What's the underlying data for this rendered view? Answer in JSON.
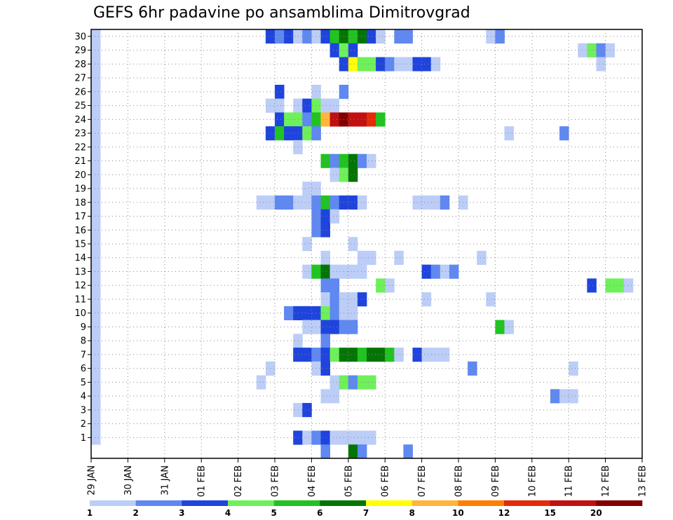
{
  "chart_data": {
    "type": "heatmap",
    "title": "GEFS 6hr padavine po ansamblima Dimitrovgrad",
    "xlabel": "",
    "ylabel": "",
    "x_tick_labels": [
      "29 JAN",
      "30 JAN",
      "31 JAN",
      "01 FEB",
      "02 FEB",
      "03 FEB",
      "04 FEB",
      "05 FEB",
      "06 FEB",
      "07 FEB",
      "08 FEB",
      "09 FEB",
      "10 FEB",
      "11 FEB",
      "12 FEB",
      "13 FEB"
    ],
    "y_tick_labels": [
      "1",
      "2",
      "3",
      "4",
      "5",
      "6",
      "7",
      "8",
      "9",
      "10",
      "11",
      "12",
      "13",
      "14",
      "15",
      "16",
      "17",
      "18",
      "19",
      "20",
      "21",
      "22",
      "23",
      "24",
      "25",
      "26",
      "27",
      "28",
      "29",
      "30"
    ],
    "y_range": [
      0,
      30
    ],
    "grid": true,
    "legend_placement": "bottom",
    "color_scale": {
      "boundaries": [
        "1",
        "2",
        "3",
        "4",
        "5",
        "6",
        "7",
        "8",
        "10",
        "12",
        "15",
        "20"
      ],
      "colors": [
        "#bccdf7",
        "#5f88f0",
        "#1f44dd",
        "#6ef05b",
        "#21c321",
        "#047504",
        "#ffff00",
        "#ffb53a",
        "#ff7f00",
        "#e52a0a",
        "#c01010",
        "#820000"
      ]
    },
    "cells": [
      [
        0,
        1,
        1
      ],
      [
        0,
        2,
        1
      ],
      [
        0,
        3,
        1
      ],
      [
        0,
        4,
        1
      ],
      [
        0,
        5,
        1
      ],
      [
        0,
        6,
        1
      ],
      [
        0,
        7,
        1
      ],
      [
        0,
        8,
        1
      ],
      [
        0,
        9,
        1
      ],
      [
        0,
        10,
        1
      ],
      [
        0,
        11,
        1
      ],
      [
        0,
        12,
        1
      ],
      [
        0,
        13,
        1
      ],
      [
        0,
        14,
        1
      ],
      [
        0,
        15,
        1
      ],
      [
        0,
        16,
        1
      ],
      [
        0,
        17,
        1
      ],
      [
        0,
        18,
        1
      ],
      [
        0,
        19,
        1
      ],
      [
        0,
        20,
        1
      ],
      [
        0,
        21,
        1
      ],
      [
        0,
        22,
        1
      ],
      [
        0,
        23,
        1
      ],
      [
        0,
        24,
        1
      ],
      [
        0,
        25,
        1
      ],
      [
        0,
        26,
        1
      ],
      [
        0,
        27,
        1
      ],
      [
        0,
        28,
        1
      ],
      [
        0,
        29,
        1
      ],
      [
        0,
        30,
        1
      ],
      [
        19,
        30,
        3
      ],
      [
        20,
        30,
        2
      ],
      [
        21,
        30,
        3
      ],
      [
        22,
        30,
        1
      ],
      [
        23,
        30,
        2
      ],
      [
        24,
        30,
        1
      ],
      [
        25,
        30,
        3
      ],
      [
        26,
        30,
        5
      ],
      [
        27,
        30,
        6
      ],
      [
        28,
        30,
        5
      ],
      [
        29,
        30,
        6
      ],
      [
        30,
        30,
        3
      ],
      [
        31,
        30,
        1
      ],
      [
        33,
        30,
        2
      ],
      [
        34,
        30,
        2
      ],
      [
        43,
        30,
        1
      ],
      [
        44,
        30,
        2
      ],
      [
        26,
        29,
        3
      ],
      [
        27,
        29,
        4
      ],
      [
        28,
        29,
        3
      ],
      [
        53,
        29,
        1
      ],
      [
        54,
        29,
        4
      ],
      [
        55,
        29,
        2
      ],
      [
        56,
        29,
        1
      ],
      [
        27,
        28,
        3
      ],
      [
        28,
        28,
        7
      ],
      [
        29,
        28,
        4
      ],
      [
        30,
        28,
        4
      ],
      [
        31,
        28,
        3
      ],
      [
        32,
        28,
        2
      ],
      [
        33,
        28,
        1
      ],
      [
        34,
        28,
        1
      ],
      [
        35,
        28,
        3
      ],
      [
        36,
        28,
        3
      ],
      [
        37,
        28,
        1
      ],
      [
        55,
        28,
        1
      ],
      [
        20,
        26,
        3
      ],
      [
        24,
        26,
        1
      ],
      [
        27,
        26,
        2
      ],
      [
        19,
        25,
        1
      ],
      [
        20,
        25,
        1
      ],
      [
        22,
        25,
        1
      ],
      [
        23,
        25,
        3
      ],
      [
        24,
        25,
        4
      ],
      [
        25,
        25,
        1
      ],
      [
        26,
        25,
        1
      ],
      [
        20,
        24,
        3
      ],
      [
        21,
        24,
        4
      ],
      [
        22,
        24,
        4
      ],
      [
        23,
        24,
        2
      ],
      [
        24,
        24,
        5
      ],
      [
        25,
        24,
        8
      ],
      [
        26,
        24,
        11
      ],
      [
        27,
        24,
        12
      ],
      [
        28,
        24,
        11
      ],
      [
        29,
        24,
        11
      ],
      [
        30,
        24,
        10
      ],
      [
        31,
        24,
        5
      ],
      [
        19,
        23,
        3
      ],
      [
        20,
        23,
        5
      ],
      [
        21,
        23,
        3
      ],
      [
        22,
        23,
        3
      ],
      [
        23,
        23,
        4
      ],
      [
        24,
        23,
        2
      ],
      [
        45,
        23,
        1
      ],
      [
        51,
        23,
        2
      ],
      [
        22,
        22,
        1
      ],
      [
        25,
        21,
        5
      ],
      [
        26,
        21,
        2
      ],
      [
        27,
        21,
        5
      ],
      [
        28,
        21,
        6
      ],
      [
        29,
        21,
        2
      ],
      [
        30,
        21,
        1
      ],
      [
        26,
        20,
        1
      ],
      [
        27,
        20,
        4
      ],
      [
        28,
        20,
        6
      ],
      [
        23,
        19,
        1
      ],
      [
        24,
        19,
        1
      ],
      [
        18,
        18,
        1
      ],
      [
        19,
        18,
        1
      ],
      [
        20,
        18,
        2
      ],
      [
        21,
        18,
        2
      ],
      [
        22,
        18,
        1
      ],
      [
        23,
        18,
        1
      ],
      [
        24,
        18,
        2
      ],
      [
        25,
        18,
        5
      ],
      [
        26,
        18,
        2
      ],
      [
        27,
        18,
        3
      ],
      [
        28,
        18,
        3
      ],
      [
        29,
        18,
        1
      ],
      [
        35,
        18,
        1
      ],
      [
        36,
        18,
        1
      ],
      [
        37,
        18,
        1
      ],
      [
        38,
        18,
        2
      ],
      [
        40,
        18,
        1
      ],
      [
        24,
        17,
        2
      ],
      [
        25,
        17,
        3
      ],
      [
        26,
        17,
        1
      ],
      [
        24,
        16,
        2
      ],
      [
        25,
        16,
        3
      ],
      [
        23,
        15,
        1
      ],
      [
        28,
        15,
        1
      ],
      [
        25,
        14,
        1
      ],
      [
        29,
        14,
        1
      ],
      [
        30,
        14,
        1
      ],
      [
        33,
        14,
        1
      ],
      [
        42,
        14,
        1
      ],
      [
        23,
        13,
        1
      ],
      [
        24,
        13,
        5
      ],
      [
        25,
        13,
        6
      ],
      [
        26,
        13,
        1
      ],
      [
        27,
        13,
        1
      ],
      [
        28,
        13,
        1
      ],
      [
        29,
        13,
        1
      ],
      [
        36,
        13,
        3
      ],
      [
        37,
        13,
        2
      ],
      [
        38,
        13,
        1
      ],
      [
        39,
        13,
        2
      ],
      [
        25,
        12,
        2
      ],
      [
        26,
        12,
        2
      ],
      [
        31,
        12,
        4
      ],
      [
        32,
        12,
        1
      ],
      [
        54,
        12,
        3
      ],
      [
        56,
        12,
        4
      ],
      [
        57,
        12,
        4
      ],
      [
        58,
        12,
        1
      ],
      [
        25,
        11,
        1
      ],
      [
        26,
        11,
        2
      ],
      [
        27,
        11,
        1
      ],
      [
        28,
        11,
        1
      ],
      [
        29,
        11,
        3
      ],
      [
        36,
        11,
        1
      ],
      [
        43,
        11,
        1
      ],
      [
        21,
        10,
        2
      ],
      [
        22,
        10,
        3
      ],
      [
        23,
        10,
        3
      ],
      [
        24,
        10,
        3
      ],
      [
        25,
        10,
        4
      ],
      [
        26,
        10,
        2
      ],
      [
        27,
        10,
        1
      ],
      [
        28,
        10,
        1
      ],
      [
        23,
        9,
        1
      ],
      [
        24,
        9,
        1
      ],
      [
        25,
        9,
        3
      ],
      [
        26,
        9,
        3
      ],
      [
        27,
        9,
        2
      ],
      [
        28,
        9,
        2
      ],
      [
        44,
        9,
        5
      ],
      [
        45,
        9,
        1
      ],
      [
        22,
        8,
        1
      ],
      [
        25,
        8,
        2
      ],
      [
        22,
        7,
        3
      ],
      [
        23,
        7,
        3
      ],
      [
        24,
        7,
        2
      ],
      [
        25,
        7,
        3
      ],
      [
        26,
        7,
        4
      ],
      [
        27,
        7,
        6
      ],
      [
        28,
        7,
        6
      ],
      [
        29,
        7,
        5
      ],
      [
        30,
        7,
        6
      ],
      [
        31,
        7,
        6
      ],
      [
        32,
        7,
        5
      ],
      [
        33,
        7,
        1
      ],
      [
        35,
        7,
        3
      ],
      [
        36,
        7,
        1
      ],
      [
        37,
        7,
        1
      ],
      [
        38,
        7,
        1
      ],
      [
        19,
        6,
        1
      ],
      [
        24,
        6,
        1
      ],
      [
        25,
        6,
        3
      ],
      [
        41,
        6,
        2
      ],
      [
        52,
        6,
        1
      ],
      [
        18,
        5,
        1
      ],
      [
        26,
        5,
        1
      ],
      [
        27,
        5,
        4
      ],
      [
        28,
        5,
        2
      ],
      [
        29,
        5,
        4
      ],
      [
        30,
        5,
        4
      ],
      [
        25,
        4,
        1
      ],
      [
        26,
        4,
        1
      ],
      [
        50,
        4,
        2
      ],
      [
        51,
        4,
        1
      ],
      [
        52,
        4,
        1
      ],
      [
        22,
        3,
        1
      ],
      [
        23,
        3,
        3
      ],
      [
        22,
        1,
        3
      ],
      [
        23,
        1,
        1
      ],
      [
        24,
        1,
        2
      ],
      [
        25,
        1,
        3
      ],
      [
        26,
        1,
        1
      ],
      [
        27,
        1,
        1
      ],
      [
        28,
        1,
        1
      ],
      [
        29,
        1,
        1
      ],
      [
        30,
        1,
        1
      ],
      [
        25,
        0,
        2
      ],
      [
        28,
        0,
        6
      ],
      [
        29,
        0,
        2
      ],
      [
        34,
        0,
        2
      ]
    ]
  }
}
